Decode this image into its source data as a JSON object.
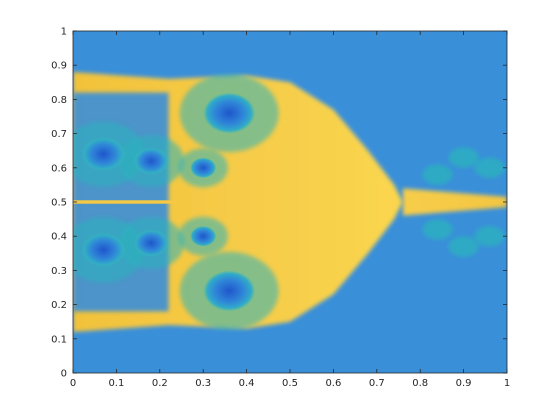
{
  "chart_data": {
    "type": "heatmap",
    "title": "",
    "xlabel": "",
    "ylabel": "",
    "xlim": [
      0,
      1
    ],
    "ylim": [
      0,
      1
    ],
    "x_ticks": [
      0,
      0.1,
      0.2,
      0.3,
      0.4,
      0.5,
      0.6,
      0.7,
      0.8,
      0.9,
      1
    ],
    "y_ticks": [
      0,
      0.1,
      0.2,
      0.3,
      0.4,
      0.5,
      0.6,
      0.7,
      0.8,
      0.9,
      1
    ],
    "x_tick_labels": [
      "0",
      "0.1",
      "0.2",
      "0.3",
      "0.4",
      "0.5",
      "0.6",
      "0.7",
      "0.8",
      "0.9",
      "1"
    ],
    "y_tick_labels": [
      "0",
      "0.1",
      "0.2",
      "0.3",
      "0.4",
      "0.5",
      "0.6",
      "0.7",
      "0.8",
      "0.9",
      "1"
    ],
    "grid": false,
    "colormap": "parula",
    "colors": {
      "background_low": "#3a8fd9",
      "high": "#f6c944",
      "mid": "#2cb3bd",
      "vortex_core": "#2a6ad6"
    },
    "field_regions": {
      "bow_shape": {
        "tip_x": 0.76,
        "tip_y": 0.5,
        "upper_edge": [
          [
            0.22,
            0.86
          ],
          [
            0.4,
            0.87
          ],
          [
            0.5,
            0.85
          ],
          [
            0.6,
            0.77
          ],
          [
            0.68,
            0.65
          ],
          [
            0.74,
            0.55
          ],
          [
            0.76,
            0.5
          ]
        ],
        "lower_edge": [
          [
            0.22,
            0.14
          ],
          [
            0.4,
            0.13
          ],
          [
            0.5,
            0.15
          ],
          [
            0.6,
            0.23
          ],
          [
            0.68,
            0.35
          ],
          [
            0.74,
            0.45
          ],
          [
            0.76,
            0.5
          ]
        ]
      },
      "vortices": [
        {
          "x": 0.07,
          "y": 0.64,
          "r": 0.05
        },
        {
          "x": 0.07,
          "y": 0.36,
          "r": 0.05
        },
        {
          "x": 0.36,
          "y": 0.76,
          "r": 0.06
        },
        {
          "x": 0.36,
          "y": 0.24,
          "r": 0.06
        },
        {
          "x": 0.18,
          "y": 0.62,
          "r": 0.04
        },
        {
          "x": 0.18,
          "y": 0.38,
          "r": 0.04
        },
        {
          "x": 0.3,
          "y": 0.6,
          "r": 0.03
        },
        {
          "x": 0.3,
          "y": 0.4,
          "r": 0.03
        }
      ],
      "tail_jet": {
        "x_start": 0.76,
        "x_end": 1.0,
        "y_center": 0.5,
        "half_width_start": 0.04,
        "half_width_end": 0.015
      }
    }
  }
}
